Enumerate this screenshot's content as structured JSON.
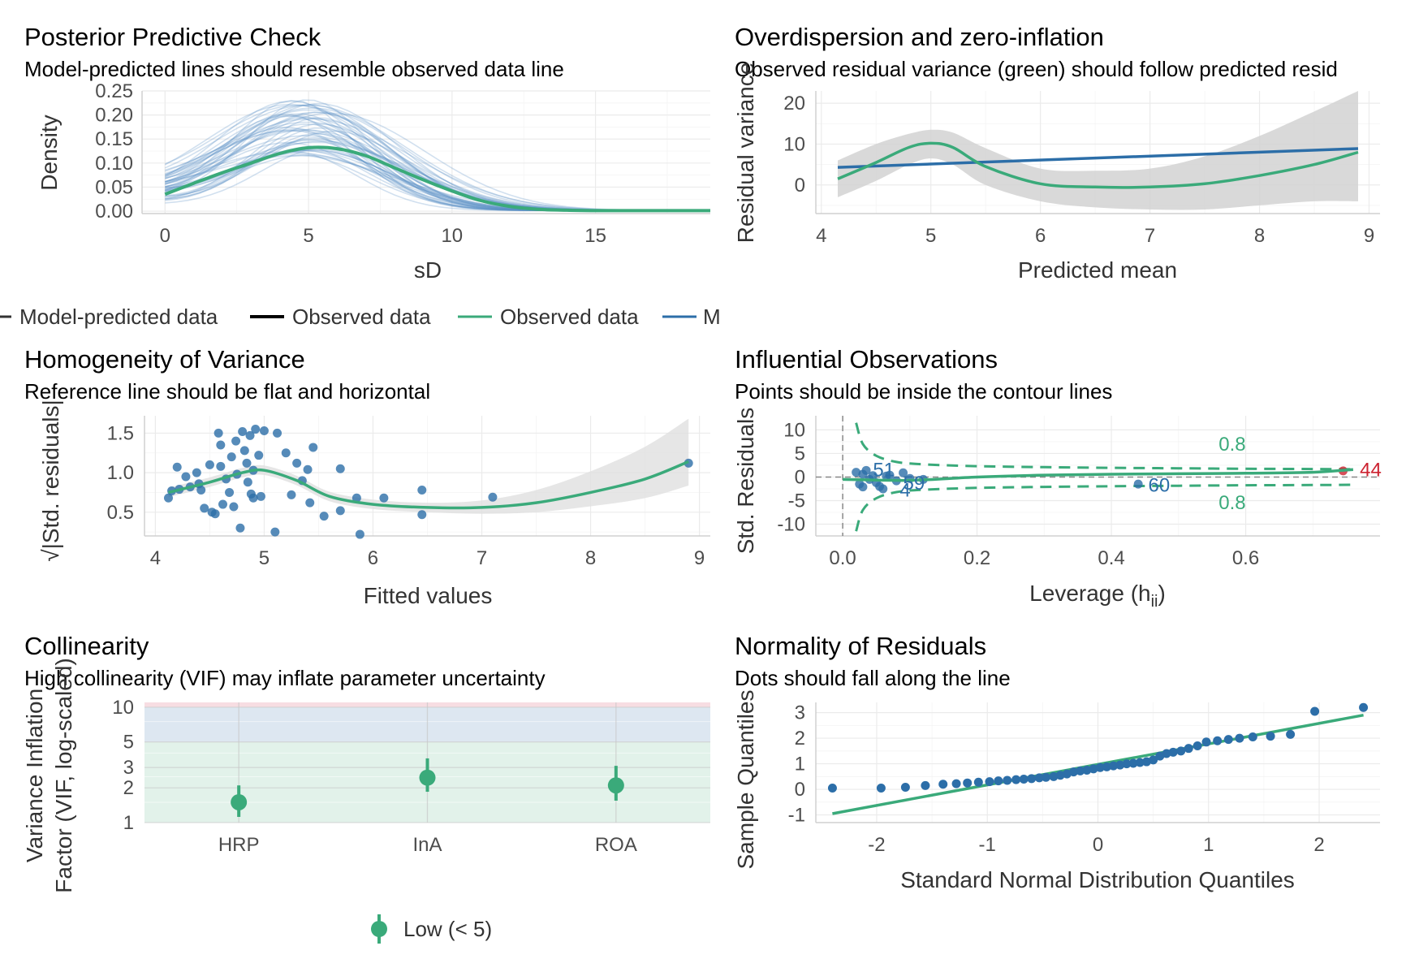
{
  "colors": {
    "green": "#3aaa7a",
    "blue": "#2c6ea8",
    "red": "#cc2230",
    "band": "#d2d2d2",
    "grid": "#ebebeb"
  },
  "panels": {
    "ppc": {
      "title": "Posterior Predictive Check",
      "subtitle": "Model-predicted lines should resemble observed data line",
      "xlabel": "sD",
      "ylabel": "Density",
      "xticks": [
        "0",
        "5",
        "10",
        "15"
      ],
      "yticks": [
        "0.00",
        "0.05",
        "0.10",
        "0.15",
        "0.20",
        "0.25"
      ],
      "legend": [
        "Model-predicted data",
        "Observed data",
        "Observed data",
        "M"
      ]
    },
    "overdisp": {
      "title": "Overdispersion and zero-inflation",
      "subtitle": "Observed residual variance (green) should follow predicted resid",
      "xlabel": "Predicted mean",
      "ylabel": "Residual variance",
      "xticks": [
        "4",
        "5",
        "6",
        "7",
        "8",
        "9"
      ],
      "yticks": [
        "0",
        "10",
        "20"
      ]
    },
    "homog": {
      "title": "Homogeneity of Variance",
      "subtitle": "Reference line should be flat and horizontal",
      "xlabel": "Fitted values",
      "ylabel": "√|Std. residuals|",
      "xticks": [
        "4",
        "5",
        "6",
        "7",
        "8",
        "9"
      ],
      "yticks": [
        "0.5",
        "1.0",
        "1.5"
      ]
    },
    "influ": {
      "title": "Influential Observations",
      "subtitle": "Points should be inside the contour lines",
      "xlabel": "Leverage (h",
      "xlabel_sub": "ii",
      "xlabel_end": ")",
      "ylabel": "Std. Residuals",
      "xticks": [
        "0.0",
        "0.2",
        "0.4",
        "0.6"
      ],
      "yticks": [
        "-10",
        "-5",
        "0",
        "5",
        "10"
      ],
      "contour_label": "0.8",
      "point_labels": [
        "51",
        "4",
        "59",
        "60",
        "44"
      ]
    },
    "collin": {
      "title": "Collinearity",
      "subtitle": "High collinearity (VIF) may inflate parameter uncertainty",
      "ylabel_line1": "Variance Inflation",
      "ylabel_line2": "Factor (VIF, log-scaled)",
      "xticks": [
        "HRP",
        "InA",
        "ROA"
      ],
      "yticks": [
        "1",
        "2",
        "3",
        "5",
        "10"
      ],
      "legend": "Low (< 5)"
    },
    "normal": {
      "title": "Normality of Residuals",
      "subtitle": "Dots should fall along the line",
      "xlabel": "Standard Normal Distribution Quantiles",
      "ylabel": "Sample Quantiles",
      "xticks": [
        "-2",
        "-1",
        "0",
        "1",
        "2"
      ],
      "yticks": [
        "-1",
        "0",
        "1",
        "2",
        "3"
      ]
    }
  },
  "chart_data": [
    {
      "type": "line",
      "id": "ppc",
      "xlim": [
        -0.8,
        19
      ],
      "ylim": [
        -0.005,
        0.25
      ],
      "series": [
        {
          "name": "Observed data",
          "x": [
            0,
            1,
            2,
            3,
            4,
            5,
            6,
            7,
            8,
            9,
            10,
            11,
            12,
            13,
            14,
            15,
            16,
            17,
            18,
            19
          ],
          "y": [
            0.035,
            0.058,
            0.08,
            0.1,
            0.12,
            0.132,
            0.13,
            0.115,
            0.09,
            0.065,
            0.042,
            0.022,
            0.01,
            0.004,
            0.002,
            0.001,
            0.001,
            0.001,
            0.001,
            0.001
          ]
        }
      ],
      "n_predicted_lines": 50
    },
    {
      "type": "line",
      "id": "overdisp",
      "xlim": [
        3.95,
        9.1
      ],
      "ylim": [
        -7,
        23
      ],
      "observed": {
        "x": [
          4.15,
          4.5,
          4.8,
          5.0,
          5.2,
          5.5,
          6.0,
          6.5,
          7.0,
          7.5,
          8.0,
          8.5,
          8.9
        ],
        "y": [
          1.5,
          5.5,
          9.2,
          10.2,
          9.2,
          4.5,
          0.3,
          -0.5,
          -0.5,
          0.3,
          2.3,
          5.0,
          8.0
        ]
      },
      "observed_band_upper": [
        6,
        10,
        12.5,
        13.5,
        12.8,
        9,
        4,
        3.5,
        4,
        7,
        12,
        18,
        23
      ],
      "observed_band_lower": [
        -3,
        1,
        5,
        6.5,
        5,
        0,
        -4,
        -5.5,
        -6,
        -6,
        -5,
        -4,
        -4
      ],
      "predicted": {
        "x": [
          4.15,
          8.9
        ],
        "y": [
          4.3,
          8.9
        ]
      }
    },
    {
      "type": "scatter",
      "id": "homog",
      "xlim": [
        3.9,
        9.1
      ],
      "ylim": [
        0.2,
        1.72
      ],
      "points": [
        [
          4.12,
          0.68
        ],
        [
          4.15,
          0.77
        ],
        [
          4.2,
          1.07
        ],
        [
          4.22,
          0.79
        ],
        [
          4.28,
          0.95
        ],
        [
          4.32,
          0.82
        ],
        [
          4.38,
          1.0
        ],
        [
          4.4,
          0.86
        ],
        [
          4.42,
          0.78
        ],
        [
          4.45,
          0.55
        ],
        [
          4.5,
          1.1
        ],
        [
          4.52,
          0.5
        ],
        [
          4.55,
          0.48
        ],
        [
          4.58,
          1.5
        ],
        [
          4.6,
          1.35
        ],
        [
          4.6,
          1.08
        ],
        [
          4.62,
          0.6
        ],
        [
          4.65,
          0.92
        ],
        [
          4.68,
          0.75
        ],
        [
          4.7,
          1.2
        ],
        [
          4.72,
          0.57
        ],
        [
          4.74,
          1.4
        ],
        [
          4.75,
          0.98
        ],
        [
          4.78,
          0.3
        ],
        [
          4.8,
          1.52
        ],
        [
          4.82,
          1.28
        ],
        [
          4.84,
          1.12
        ],
        [
          4.85,
          0.88
        ],
        [
          4.87,
          1.47
        ],
        [
          4.88,
          0.73
        ],
        [
          4.9,
          1.03
        ],
        [
          4.9,
          0.68
        ],
        [
          4.92,
          1.55
        ],
        [
          4.95,
          1.22
        ],
        [
          4.97,
          0.7
        ],
        [
          5.0,
          1.53
        ],
        [
          5.1,
          0.25
        ],
        [
          5.12,
          1.5
        ],
        [
          5.2,
          1.25
        ],
        [
          5.25,
          0.72
        ],
        [
          5.3,
          1.12
        ],
        [
          5.35,
          0.9
        ],
        [
          5.4,
          1.04
        ],
        [
          5.42,
          0.62
        ],
        [
          5.45,
          1.32
        ],
        [
          5.55,
          0.45
        ],
        [
          5.7,
          0.52
        ],
        [
          5.7,
          1.05
        ],
        [
          5.85,
          0.68
        ],
        [
          5.88,
          0.22
        ],
        [
          6.1,
          0.68
        ],
        [
          6.45,
          0.47
        ],
        [
          6.45,
          0.78
        ],
        [
          7.1,
          0.69
        ],
        [
          8.9,
          1.12
        ]
      ],
      "smooth": {
        "x": [
          4.12,
          4.5,
          4.8,
          5.0,
          5.3,
          5.6,
          6.0,
          6.5,
          7.0,
          7.5,
          8.0,
          8.5,
          8.9
        ],
        "y": [
          0.75,
          0.88,
          1.0,
          1.03,
          0.9,
          0.7,
          0.6,
          0.56,
          0.56,
          0.62,
          0.75,
          0.92,
          1.14
        ]
      }
    },
    {
      "type": "scatter",
      "id": "influ",
      "xlim": [
        -0.04,
        0.8
      ],
      "ylim": [
        -12.5,
        13
      ],
      "points": [
        [
          0.02,
          1.0
        ],
        [
          0.025,
          -1.5
        ],
        [
          0.03,
          0.6
        ],
        [
          0.03,
          -2.1
        ],
        [
          0.035,
          1.4
        ],
        [
          0.04,
          -0.5
        ],
        [
          0.045,
          0.3
        ],
        [
          0.05,
          -1.2
        ],
        [
          0.055,
          -2.0
        ],
        [
          0.06,
          -2.5
        ],
        [
          0.065,
          0.2
        ],
        [
          0.07,
          0.4
        ],
        [
          0.08,
          -0.8
        ],
        [
          0.09,
          0.9
        ],
        [
          0.1,
          -0.3
        ],
        [
          0.12,
          -0.5
        ],
        [
          0.44,
          -1.5
        ],
        [
          0.745,
          1.3
        ]
      ],
      "smooth": {
        "x": [
          0.0,
          0.1,
          0.2,
          0.3,
          0.4,
          0.5,
          0.6,
          0.7,
          0.76
        ],
        "y": [
          -0.5,
          -0.7,
          0.0,
          0.4,
          0.6,
          0.7,
          0.8,
          1.0,
          1.6
        ]
      },
      "contour_x": [
        0.02,
        0.03,
        0.05,
        0.08,
        0.12,
        0.2,
        0.3,
        0.4,
        0.5,
        0.6,
        0.7,
        0.76
      ],
      "contour_y": [
        11.5,
        7.0,
        4.5,
        3.2,
        2.7,
        2.3,
        2.1,
        1.95,
        1.85,
        1.75,
        1.7,
        1.65
      ]
    },
    {
      "type": "scatter",
      "id": "collin",
      "categories": [
        "HRP",
        "InA",
        "ROA"
      ],
      "values": [
        1.5,
        2.45,
        2.1
      ],
      "ci_low": [
        1.12,
        1.85,
        1.55
      ],
      "ci_high": [
        2.1,
        3.6,
        3.1
      ],
      "ylim_log": [
        1,
        11
      ],
      "zones": [
        {
          "label": "Low (< 5)",
          "from": 1,
          "to": 5,
          "color": "#e2f2ea"
        },
        {
          "from": 5,
          "to": 10,
          "color": "#dde7f1"
        },
        {
          "from": 10,
          "to": 11,
          "color": "#f7dde2"
        }
      ]
    },
    {
      "type": "scatter",
      "id": "normal",
      "xlim": [
        -2.55,
        2.55
      ],
      "ylim": [
        -1.3,
        3.4
      ],
      "points": [
        [
          -2.4,
          0.05
        ],
        [
          -1.96,
          0.05
        ],
        [
          -1.74,
          0.08
        ],
        [
          -1.56,
          0.15
        ],
        [
          -1.4,
          0.2
        ],
        [
          -1.28,
          0.22
        ],
        [
          -1.18,
          0.25
        ],
        [
          -1.08,
          0.28
        ],
        [
          -0.98,
          0.3
        ],
        [
          -0.9,
          0.33
        ],
        [
          -0.82,
          0.35
        ],
        [
          -0.74,
          0.38
        ],
        [
          -0.67,
          0.4
        ],
        [
          -0.6,
          0.42
        ],
        [
          -0.53,
          0.45
        ],
        [
          -0.47,
          0.47
        ],
        [
          -0.4,
          0.5
        ],
        [
          -0.34,
          0.55
        ],
        [
          -0.28,
          0.6
        ],
        [
          -0.22,
          0.68
        ],
        [
          -0.16,
          0.72
        ],
        [
          -0.1,
          0.75
        ],
        [
          -0.04,
          0.8
        ],
        [
          0.02,
          0.85
        ],
        [
          0.08,
          0.88
        ],
        [
          0.14,
          0.92
        ],
        [
          0.2,
          0.95
        ],
        [
          0.26,
          1.0
        ],
        [
          0.32,
          1.02
        ],
        [
          0.38,
          1.05
        ],
        [
          0.44,
          1.08
        ],
        [
          0.5,
          1.15
        ],
        [
          0.56,
          1.3
        ],
        [
          0.62,
          1.4
        ],
        [
          0.68,
          1.45
        ],
        [
          0.75,
          1.5
        ],
        [
          0.82,
          1.6
        ],
        [
          0.9,
          1.7
        ],
        [
          0.98,
          1.85
        ],
        [
          1.08,
          1.9
        ],
        [
          1.18,
          1.95
        ],
        [
          1.28,
          2.0
        ],
        [
          1.4,
          2.05
        ],
        [
          1.56,
          2.08
        ],
        [
          1.74,
          2.15
        ],
        [
          1.96,
          3.05
        ],
        [
          2.4,
          3.2
        ]
      ],
      "ref_line": {
        "x": [
          -2.4,
          2.4
        ],
        "y": [
          -0.95,
          2.9
        ]
      }
    }
  ]
}
